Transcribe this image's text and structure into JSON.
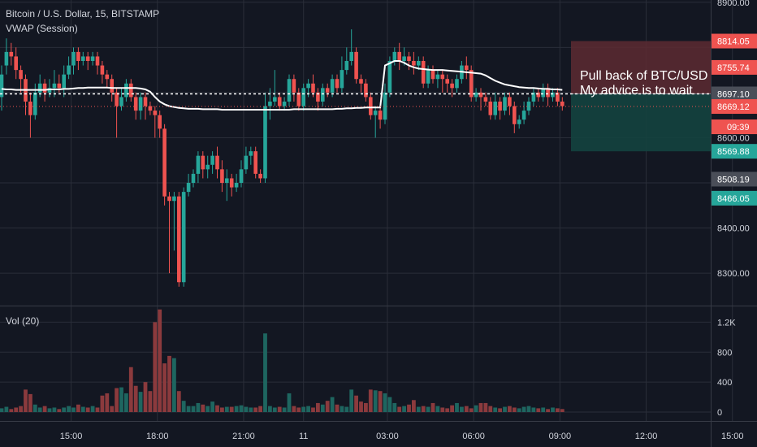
{
  "header": {
    "title": "Bitcoin / U.S. Dollar, 15, BITSTAMP",
    "indicator": "VWAP (Session)",
    "volume_label": "Vol (20)"
  },
  "colors": {
    "up": "#26a69a",
    "down": "#ef5350",
    "up_vol": "#1e6660",
    "down_vol": "#8b3a3d",
    "bg": "#131722",
    "grid": "#2a2e39",
    "vwap": "#ffffff"
  },
  "annotation": {
    "line1": "Pull back of BTC/USD",
    "line2": "My advice is to wait"
  },
  "position": {
    "stop": 8814.05,
    "entry": 8697.1,
    "target": 8569.88
  },
  "current_time": "09:39",
  "chart_data": {
    "type": "candlestick",
    "price_axis": {
      "ticks": [
        8900,
        8800,
        8700,
        8600,
        8500,
        8400,
        8300
      ],
      "range": [
        8230,
        8905
      ]
    },
    "price_labels": [
      {
        "text": "8900.00",
        "value": 8900,
        "style": "plain"
      },
      {
        "text": "8814.05",
        "value": 8814.05,
        "style": "red"
      },
      {
        "text": "8755.74",
        "value": 8755.74,
        "style": "red"
      },
      {
        "text": "8697.10",
        "value": 8697.1,
        "style": "gray"
      },
      {
        "text": "8669.12",
        "value": 8669.12,
        "style": "red"
      },
      {
        "text": "8600.00",
        "value": 8600,
        "style": "plain"
      },
      {
        "text": "8569.88",
        "value": 8569.88,
        "style": "green"
      },
      {
        "text": "8508.19",
        "value": 8508.19,
        "style": "gray"
      },
      {
        "text": "8466.05",
        "value": 8466.05,
        "style": "green"
      },
      {
        "text": "8400.00",
        "value": 8400,
        "style": "plain"
      },
      {
        "text": "8300.00",
        "value": 8300,
        "style": "plain"
      }
    ],
    "volume_axis": {
      "ticks": [
        "1.2K",
        "800",
        "400",
        "0"
      ],
      "values": [
        1200,
        800,
        400,
        0
      ],
      "range": [
        0,
        1400
      ]
    },
    "time_ticks": [
      {
        "label": "15:00",
        "index": 14.5
      },
      {
        "label": "18:00",
        "index": 32.5
      },
      {
        "label": "21:00",
        "index": 50.5
      },
      {
        "label": "11",
        "index": 63
      },
      {
        "label": "03:00",
        "index": 80.5
      },
      {
        "label": "06:00",
        "index": 98.5
      },
      {
        "label": "09:00",
        "index": 116.5
      },
      {
        "label": "12:00",
        "index": 134.5
      },
      {
        "label": "15:00",
        "index": 152.5
      }
    ],
    "candles": [
      [
        8690,
        8740,
        8660,
        8760
      ],
      [
        8760,
        8790,
        8740,
        8820
      ],
      [
        8790,
        8780,
        8760,
        8810
      ],
      [
        8780,
        8750,
        8730,
        8800
      ],
      [
        8750,
        8730,
        8700,
        8760
      ],
      [
        8730,
        8680,
        8650,
        8740
      ],
      [
        8680,
        8650,
        8600,
        8700
      ],
      [
        8650,
        8700,
        8640,
        8720
      ],
      [
        8700,
        8720,
        8690,
        8740
      ],
      [
        8720,
        8700,
        8680,
        8730
      ],
      [
        8700,
        8710,
        8690,
        8730
      ],
      [
        8710,
        8720,
        8690,
        8750
      ],
      [
        8720,
        8710,
        8700,
        8740
      ],
      [
        8710,
        8740,
        8690,
        8760
      ],
      [
        8740,
        8760,
        8730,
        8780
      ],
      [
        8760,
        8790,
        8740,
        8800
      ],
      [
        8790,
        8770,
        8750,
        8800
      ],
      [
        8770,
        8780,
        8760,
        8790
      ],
      [
        8780,
        8770,
        8750,
        8790
      ],
      [
        8770,
        8780,
        8760,
        8790
      ],
      [
        8780,
        8760,
        8740,
        8790
      ],
      [
        8760,
        8740,
        8720,
        8770
      ],
      [
        8740,
        8730,
        8710,
        8750
      ],
      [
        8730,
        8700,
        8680,
        8740
      ],
      [
        8700,
        8670,
        8600,
        8710
      ],
      [
        8670,
        8690,
        8660,
        8710
      ],
      [
        8690,
        8720,
        8680,
        8730
      ],
      [
        8720,
        8690,
        8680,
        8730
      ],
      [
        8690,
        8660,
        8640,
        8700
      ],
      [
        8660,
        8690,
        8640,
        8700
      ],
      [
        8690,
        8670,
        8640,
        8700
      ],
      [
        8670,
        8660,
        8650,
        8680
      ],
      [
        8660,
        8650,
        8600,
        8670
      ],
      [
        8650,
        8620,
        8600,
        8660
      ],
      [
        8620,
        8470,
        8450,
        8630
      ],
      [
        8470,
        8460,
        8300,
        8480
      ],
      [
        8460,
        8470,
        8350,
        8480
      ],
      [
        8470,
        8280,
        8270,
        8480
      ],
      [
        8280,
        8480,
        8270,
        8490
      ],
      [
        8480,
        8500,
        8470,
        8520
      ],
      [
        8500,
        8520,
        8490,
        8530
      ],
      [
        8520,
        8560,
        8500,
        8570
      ],
      [
        8560,
        8530,
        8510,
        8570
      ],
      [
        8530,
        8540,
        8510,
        8560
      ],
      [
        8540,
        8560,
        8520,
        8570
      ],
      [
        8560,
        8530,
        8510,
        8580
      ],
      [
        8530,
        8500,
        8480,
        8550
      ],
      [
        8500,
        8510,
        8460,
        8530
      ],
      [
        8510,
        8490,
        8470,
        8520
      ],
      [
        8490,
        8500,
        8480,
        8520
      ],
      [
        8500,
        8530,
        8490,
        8550
      ],
      [
        8530,
        8560,
        8520,
        8580
      ],
      [
        8560,
        8570,
        8540,
        8580
      ],
      [
        8570,
        8520,
        8510,
        8580
      ],
      [
        8520,
        8510,
        8500,
        8530
      ],
      [
        8510,
        8670,
        8500,
        8700
      ],
      [
        8670,
        8680,
        8640,
        8710
      ],
      [
        8680,
        8690,
        8670,
        8750
      ],
      [
        8690,
        8670,
        8660,
        8700
      ],
      [
        8670,
        8680,
        8660,
        8690
      ],
      [
        8680,
        8730,
        8670,
        8740
      ],
      [
        8730,
        8700,
        8680,
        8740
      ],
      [
        8700,
        8670,
        8660,
        8710
      ],
      [
        8670,
        8710,
        8660,
        8720
      ],
      [
        8710,
        8720,
        8690,
        8730
      ],
      [
        8720,
        8700,
        8690,
        8740
      ],
      [
        8700,
        8680,
        8660,
        8710
      ],
      [
        8680,
        8710,
        8670,
        8720
      ],
      [
        8710,
        8700,
        8690,
        8720
      ],
      [
        8700,
        8730,
        8690,
        8740
      ],
      [
        8730,
        8710,
        8700,
        8740
      ],
      [
        8710,
        8750,
        8700,
        8780
      ],
      [
        8750,
        8770,
        8740,
        8800
      ],
      [
        8770,
        8790,
        8760,
        8840
      ],
      [
        8790,
        8730,
        8720,
        8800
      ],
      [
        8730,
        8720,
        8700,
        8740
      ],
      [
        8720,
        8690,
        8680,
        8730
      ],
      [
        8690,
        8650,
        8640,
        8700
      ],
      [
        8650,
        8660,
        8600,
        8670
      ],
      [
        8660,
        8640,
        8620,
        8670
      ],
      [
        8640,
        8700,
        8630,
        8720
      ],
      [
        8700,
        8770,
        8690,
        8780
      ],
      [
        8770,
        8790,
        8760,
        8800
      ],
      [
        8790,
        8770,
        8750,
        8810
      ],
      [
        8770,
        8780,
        8760,
        8800
      ],
      [
        8780,
        8770,
        8750,
        8790
      ],
      [
        8770,
        8760,
        8740,
        8790
      ],
      [
        8760,
        8770,
        8750,
        8780
      ],
      [
        8770,
        8720,
        8710,
        8780
      ],
      [
        8720,
        8750,
        8710,
        8760
      ],
      [
        8750,
        8730,
        8720,
        8760
      ],
      [
        8730,
        8740,
        8710,
        8750
      ],
      [
        8740,
        8730,
        8700,
        8750
      ],
      [
        8730,
        8720,
        8700,
        8740
      ],
      [
        8720,
        8710,
        8690,
        8730
      ],
      [
        8710,
        8730,
        8700,
        8740
      ],
      [
        8730,
        8760,
        8720,
        8770
      ],
      [
        8760,
        8750,
        8730,
        8780
      ],
      [
        8750,
        8690,
        8680,
        8760
      ],
      [
        8690,
        8700,
        8680,
        8710
      ],
      [
        8700,
        8690,
        8660,
        8710
      ],
      [
        8690,
        8680,
        8670,
        8700
      ],
      [
        8680,
        8650,
        8640,
        8690
      ],
      [
        8650,
        8680,
        8640,
        8700
      ],
      [
        8680,
        8660,
        8640,
        8690
      ],
      [
        8660,
        8690,
        8650,
        8700
      ],
      [
        8690,
        8670,
        8650,
        8700
      ],
      [
        8670,
        8630,
        8610,
        8680
      ],
      [
        8630,
        8640,
        8620,
        8650
      ],
      [
        8640,
        8660,
        8630,
        8680
      ],
      [
        8660,
        8680,
        8650,
        8690
      ],
      [
        8680,
        8700,
        8670,
        8710
      ],
      [
        8700,
        8690,
        8680,
        8710
      ],
      [
        8690,
        8710,
        8680,
        8720
      ],
      [
        8710,
        8690,
        8670,
        8720
      ],
      [
        8690,
        8700,
        8680,
        8710
      ],
      [
        8700,
        8680,
        8670,
        8710
      ],
      [
        8680,
        8670,
        8660,
        8690
      ]
    ],
    "volume": [
      50,
      70,
      40,
      60,
      80,
      300,
      240,
      100,
      60,
      80,
      50,
      60,
      40,
      60,
      80,
      60,
      100,
      70,
      60,
      80,
      60,
      220,
      250,
      80,
      320,
      330,
      250,
      600,
      350,
      270,
      400,
      280,
      1200,
      1370,
      650,
      750,
      720,
      280,
      150,
      80,
      80,
      120,
      100,
      80,
      140,
      90,
      60,
      70,
      70,
      80,
      90,
      70,
      60,
      60,
      80,
      1050,
      80,
      60,
      70,
      60,
      250,
      80,
      60,
      70,
      80,
      60,
      120,
      100,
      150,
      200,
      100,
      80,
      70,
      300,
      220,
      140,
      120,
      300,
      290,
      280,
      250,
      200,
      120,
      70,
      80,
      100,
      160,
      70,
      80,
      70,
      120,
      80,
      60,
      50,
      90,
      120,
      70,
      80,
      50,
      90,
      120,
      120,
      80,
      60,
      50,
      70,
      80,
      60,
      50,
      70,
      80,
      60,
      50,
      60,
      40,
      60,
      50,
      40
    ],
    "vwap": [
      8708,
      8707,
      8707,
      8706,
      8706,
      8706,
      8706,
      8706,
      8706,
      8706,
      8707,
      8707,
      8707,
      8708,
      8708,
      8709,
      8710,
      8710,
      8711,
      8711,
      8711,
      8711,
      8711,
      8710,
      8710,
      8710,
      8710,
      8710,
      8710,
      8709,
      8707,
      8702,
      8690,
      8680,
      8674,
      8670,
      8668,
      8666,
      8665,
      8664,
      8664,
      8664,
      8663,
      8663,
      8663,
      8663,
      8662,
      8662,
      8662,
      8662,
      8662,
      8662,
      8662,
      8662,
      8662,
      8662,
      8662,
      8662,
      8662,
      8662,
      8662,
      8663,
      8663,
      8663,
      8663,
      8663,
      8663,
      8663,
      8663,
      8663,
      8664,
      8664,
      8665,
      8665,
      8666,
      8666,
      8667,
      8667,
      8667,
      8667,
      8760,
      8765,
      8770,
      8770,
      8766,
      8760,
      8756,
      8753,
      8752,
      8751,
      8750,
      8750,
      8750,
      8749,
      8748,
      8747,
      8746,
      8745,
      8744,
      8743,
      8742,
      8738,
      8732,
      8726,
      8722,
      8718,
      8716,
      8714,
      8712,
      8711,
      8710,
      8710,
      8709,
      8708,
      8708,
      8707,
      8707,
      8706
    ]
  }
}
